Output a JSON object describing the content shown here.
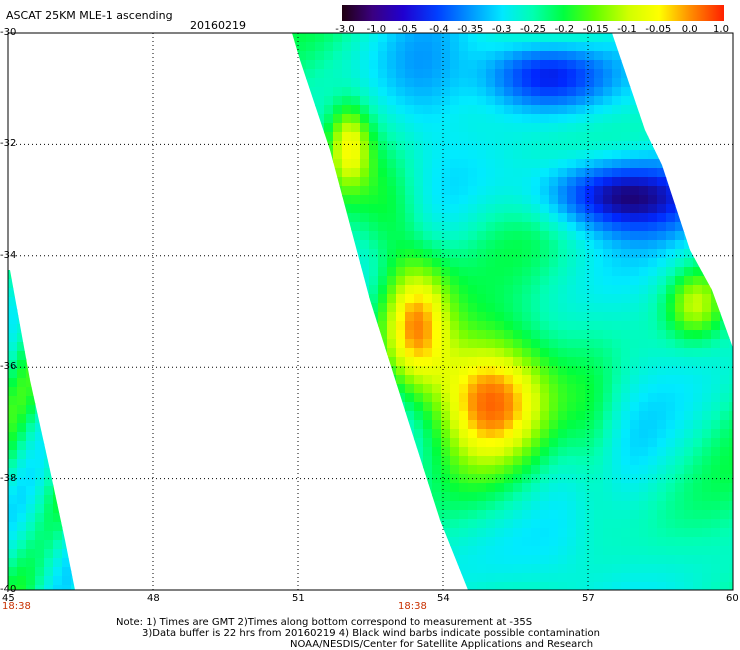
{
  "header": {
    "title": "ASCAT 25KM MLE-1 ascending",
    "date": "20160219"
  },
  "colorbar": {
    "labels": [
      "-3.0",
      "-1.0",
      "-0.5",
      "-0.4",
      "-0.35",
      "-0.3",
      "-0.25",
      "-0.2",
      "-0.15",
      "-0.1",
      "-0.05",
      "0.0",
      "1.0"
    ],
    "stops": [
      "#200010",
      "#2a0070",
      "#2000d0",
      "#0040ff",
      "#0090ff",
      "#00d8ff",
      "#00ffc0",
      "#00ff40",
      "#60ff00",
      "#c8ff00",
      "#ffff00",
      "#ff9000",
      "#ff2000"
    ]
  },
  "map": {
    "lat_labels": [
      "-30",
      "-32",
      "-34",
      "-36",
      "-38",
      "-40"
    ],
    "lon_labels": [
      "45",
      "48",
      "51",
      "54",
      "57",
      "60"
    ],
    "time_labels": [
      "18:38",
      "18:38"
    ],
    "lat_range": [
      -40,
      -30
    ],
    "lon_range": [
      45,
      60
    ]
  },
  "notes": {
    "line1": "Note: 1) Times are GMT 2)Times along bottom correspond to measurement at -35S",
    "line2": "3)Data buffer is 22 hrs from 20160219 4) Black wind barbs indicate possible contamination",
    "line3": "NOAA/NESDIS/Center for Satellite Applications and Research"
  }
}
